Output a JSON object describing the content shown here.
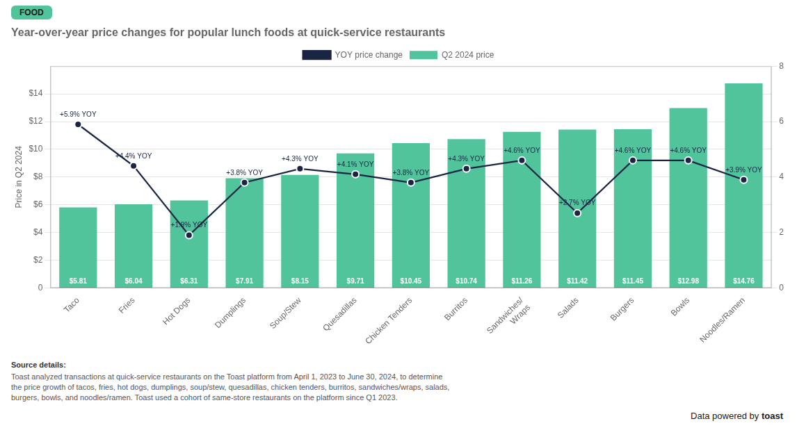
{
  "chart_data": {
    "type": "bar",
    "title": "Year-over-year price changes for popular lunch foods at quick-service restaurants",
    "ylabel": "Price in Q2 2024",
    "categories": [
      "Taco",
      "Fries",
      "Hot Dogs",
      "Dumplings",
      "Soup/Stew",
      "Quesadillas",
      "Chicken Tenders",
      "Burritos",
      "Sandwiches/\nWraps",
      "Salads",
      "Burgers",
      "Bowls",
      "Noodles/Ramen"
    ],
    "series": [
      {
        "name": "Q2 2024 price",
        "type": "bar",
        "color": "#52c49b",
        "values": [
          5.81,
          6.04,
          6.31,
          7.91,
          8.15,
          9.71,
          10.45,
          10.74,
          11.26,
          11.42,
          11.45,
          12.98,
          14.76
        ],
        "value_labels": [
          "$5.81",
          "$6.04",
          "$6.31",
          "$7.91",
          "$8.15",
          "$9.71",
          "$10.45",
          "$10.74",
          "$11.26",
          "$11.42",
          "$11.45",
          "$12.98",
          "$14.76"
        ]
      },
      {
        "name": "YOY price change",
        "type": "line",
        "axis": "y2",
        "color": "#1a2544",
        "marker": "circle",
        "values": [
          5.9,
          4.4,
          1.9,
          3.8,
          4.3,
          4.1,
          3.8,
          4.3,
          4.6,
          2.7,
          4.6,
          4.6,
          3.9
        ],
        "value_labels": [
          "+5.9% YOY",
          "+4.4% YOY",
          "+1.9% YOY",
          "+3.8% YOY",
          "+4.3% YOY",
          "+4.1% YOY",
          "+3.8% YOY",
          "+4.3% YOY",
          "+4.6% YOY",
          "+2.7% YOY",
          "+4.6% YOY",
          "+4.6% YOY",
          "+3.9% YOY"
        ]
      }
    ],
    "ylim": [
      0,
      16
    ],
    "yticks": [
      0,
      {
        "value": 2,
        "label": "$2"
      },
      {
        "value": 4,
        "label": "$4"
      },
      {
        "value": 6,
        "label": "$6"
      },
      {
        "value": 8,
        "label": "$8"
      },
      {
        "value": 10,
        "label": "$10"
      },
      {
        "value": 12,
        "label": "$12"
      },
      {
        "value": 14,
        "label": "$14"
      }
    ],
    "y2lim": [
      0,
      8
    ],
    "y2ticks": [
      0,
      2,
      4,
      6,
      8
    ],
    "grid": true,
    "legend": "top",
    "data_labels": true,
    "annotations": [
      "FOOD",
      "Source details:",
      "Toast analyzed transactions at quick-service restaurants on the Toast platform from April 1, 2023 to June 30, 2024, to determine\nthe price growth of tacos, fries, hot dogs, dumplings, soup/stew, quesadillas, chicken tenders, burritos, sandwiches/wraps, salads,\nburgers, bowls, and noodles/ramen. Toast used a cohort of same-store restaurants on the platform since Q1 2023.",
      "Data powered by",
      "toast"
    ]
  }
}
